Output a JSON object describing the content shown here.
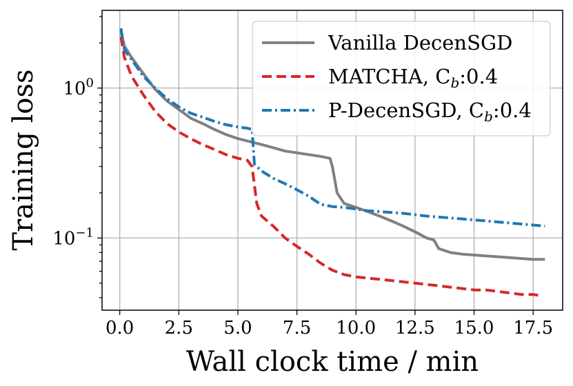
{
  "chart_data": {
    "type": "line",
    "title": "",
    "xlabel": "Wall clock time / min",
    "ylabel": "Training loss",
    "xscale": "linear",
    "yscale": "log",
    "xlim": [
      -0.75,
      18.75
    ],
    "ylim": [
      0.033,
      3.3
    ],
    "grid": true,
    "legend_position": "top-right",
    "x_ticks": [
      {
        "value": 0.0,
        "label": "0.0"
      },
      {
        "value": 2.5,
        "label": "2.5"
      },
      {
        "value": 5.0,
        "label": "5.0"
      },
      {
        "value": 7.5,
        "label": "7.5"
      },
      {
        "value": 10.0,
        "label": "10.0"
      },
      {
        "value": 12.5,
        "label": "12.5"
      },
      {
        "value": 15.0,
        "label": "15.0"
      },
      {
        "value": 17.5,
        "label": "17.5"
      }
    ],
    "y_ticks": [
      {
        "value": 1.0,
        "base": "10",
        "exp": "0"
      },
      {
        "value": 0.1,
        "base": "10",
        "exp": "−1"
      }
    ],
    "series": [
      {
        "name": "Vanilla DecenSGD",
        "legend_label": "Vanilla DecenSGD",
        "legend_subscript": "",
        "legend_suffix": "",
        "color": "#808080",
        "dash": "solid",
        "x": [
          0.05,
          0.2,
          0.5,
          1.0,
          1.5,
          2.0,
          2.5,
          3.0,
          3.5,
          4.0,
          4.5,
          5.0,
          5.5,
          6.0,
          6.5,
          7.0,
          7.5,
          8.0,
          8.5,
          8.9,
          9.0,
          9.2,
          9.5,
          10.0,
          10.5,
          11.0,
          11.5,
          12.0,
          12.5,
          13.0,
          13.3,
          13.5,
          14.0,
          14.5,
          15.0,
          15.5,
          16.0,
          16.5,
          17.0,
          17.5,
          18.0
        ],
        "y": [
          2.4,
          1.9,
          1.6,
          1.25,
          0.98,
          0.82,
          0.72,
          0.63,
          0.58,
          0.53,
          0.49,
          0.46,
          0.44,
          0.42,
          0.4,
          0.38,
          0.37,
          0.36,
          0.35,
          0.34,
          0.3,
          0.2,
          0.17,
          0.16,
          0.15,
          0.14,
          0.13,
          0.12,
          0.11,
          0.1,
          0.097,
          0.085,
          0.08,
          0.078,
          0.077,
          0.076,
          0.075,
          0.074,
          0.073,
          0.072,
          0.072
        ]
      },
      {
        "name": "MATCHA, Cb:0.4",
        "legend_label": "MATCHA, C",
        "legend_subscript": "b",
        "legend_suffix": ":0.4",
        "color": "#d62728",
        "dash": "dashed",
        "x": [
          0.05,
          0.2,
          0.5,
          1.0,
          1.5,
          2.0,
          2.5,
          3.0,
          3.5,
          4.0,
          4.5,
          5.0,
          5.4,
          5.6,
          5.8,
          6.0,
          6.5,
          7.0,
          7.5,
          8.0,
          8.5,
          9.0,
          9.5,
          10.0,
          10.5,
          11.0,
          11.5,
          12.0,
          12.5,
          13.0,
          13.5,
          14.0,
          14.5,
          15.0,
          15.5,
          16.0,
          16.5,
          17.0,
          17.5,
          17.9
        ],
        "y": [
          2.2,
          1.6,
          1.2,
          0.9,
          0.7,
          0.58,
          0.51,
          0.46,
          0.42,
          0.39,
          0.36,
          0.34,
          0.33,
          0.3,
          0.17,
          0.14,
          0.12,
          0.1,
          0.088,
          0.078,
          0.068,
          0.061,
          0.057,
          0.055,
          0.054,
          0.053,
          0.052,
          0.051,
          0.05,
          0.049,
          0.048,
          0.047,
          0.046,
          0.045,
          0.045,
          0.044,
          0.043,
          0.042,
          0.042,
          0.041
        ]
      },
      {
        "name": "P-DecenSGD, Cb:0.4",
        "legend_label": "P-DecenSGD, C",
        "legend_subscript": "b",
        "legend_suffix": ":0.4",
        "color": "#1f77b4",
        "dash": "dashdot",
        "x": [
          0.05,
          0.2,
          0.5,
          1.0,
          1.5,
          2.0,
          2.5,
          3.0,
          3.5,
          4.0,
          4.5,
          5.0,
          5.4,
          5.6,
          5.7,
          6.0,
          6.5,
          7.0,
          7.5,
          8.0,
          8.5,
          9.0,
          9.5,
          10.0,
          10.5,
          11.0,
          11.5,
          12.0,
          12.5,
          13.0,
          13.5,
          14.0,
          14.5,
          15.0,
          15.5,
          16.0,
          16.5,
          17.0,
          17.5,
          18.0
        ],
        "y": [
          2.5,
          1.8,
          1.55,
          1.2,
          1.0,
          0.85,
          0.75,
          0.68,
          0.64,
          0.6,
          0.57,
          0.55,
          0.54,
          0.53,
          0.31,
          0.28,
          0.25,
          0.23,
          0.21,
          0.19,
          0.168,
          0.162,
          0.16,
          0.156,
          0.152,
          0.15,
          0.148,
          0.146,
          0.143,
          0.14,
          0.138,
          0.136,
          0.134,
          0.132,
          0.13,
          0.128,
          0.126,
          0.124,
          0.122,
          0.12
        ]
      }
    ]
  }
}
